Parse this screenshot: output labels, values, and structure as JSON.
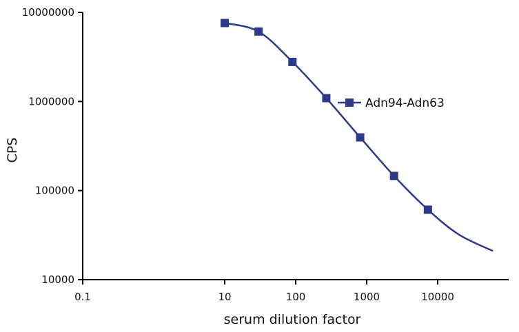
{
  "chart_data": {
    "type": "line",
    "xlabel": "serum dilution factor",
    "ylabel": "CPS",
    "x_scale": "log",
    "y_scale": "log",
    "xlim": [
      0.1,
      100000
    ],
    "ylim": [
      10000,
      10000000
    ],
    "x_ticks": [
      0.1,
      10,
      100,
      1000,
      10000
    ],
    "x_tick_labels": [
      "0.1",
      "10",
      "100",
      "1000",
      "10000"
    ],
    "y_ticks": [
      10000,
      100000,
      1000000,
      10000000
    ],
    "y_tick_labels": [
      "10000",
      "100000",
      "1000000",
      "10000000"
    ],
    "grid": false,
    "legend_position": "right",
    "color": "#2e3a87",
    "series": [
      {
        "name": "Adn94-Adn63",
        "marker": "square",
        "points": [
          {
            "x": 10,
            "y": 7600000
          },
          {
            "x": 30,
            "y": 6100000
          },
          {
            "x": 90,
            "y": 2780000
          },
          {
            "x": 270,
            "y": 1090000
          },
          {
            "x": 810,
            "y": 395000
          },
          {
            "x": 2430,
            "y": 146000
          },
          {
            "x": 7290,
            "y": 61000
          }
        ],
        "fit_curve": [
          {
            "x": 10,
            "y": 7600000
          },
          {
            "x": 30,
            "y": 6100000
          },
          {
            "x": 90,
            "y": 2780000
          },
          {
            "x": 270,
            "y": 1090000
          },
          {
            "x": 810,
            "y": 395000
          },
          {
            "x": 2430,
            "y": 146000
          },
          {
            "x": 7290,
            "y": 61000
          },
          {
            "x": 20000,
            "y": 32000
          },
          {
            "x": 60000,
            "y": 21000
          }
        ]
      }
    ]
  }
}
